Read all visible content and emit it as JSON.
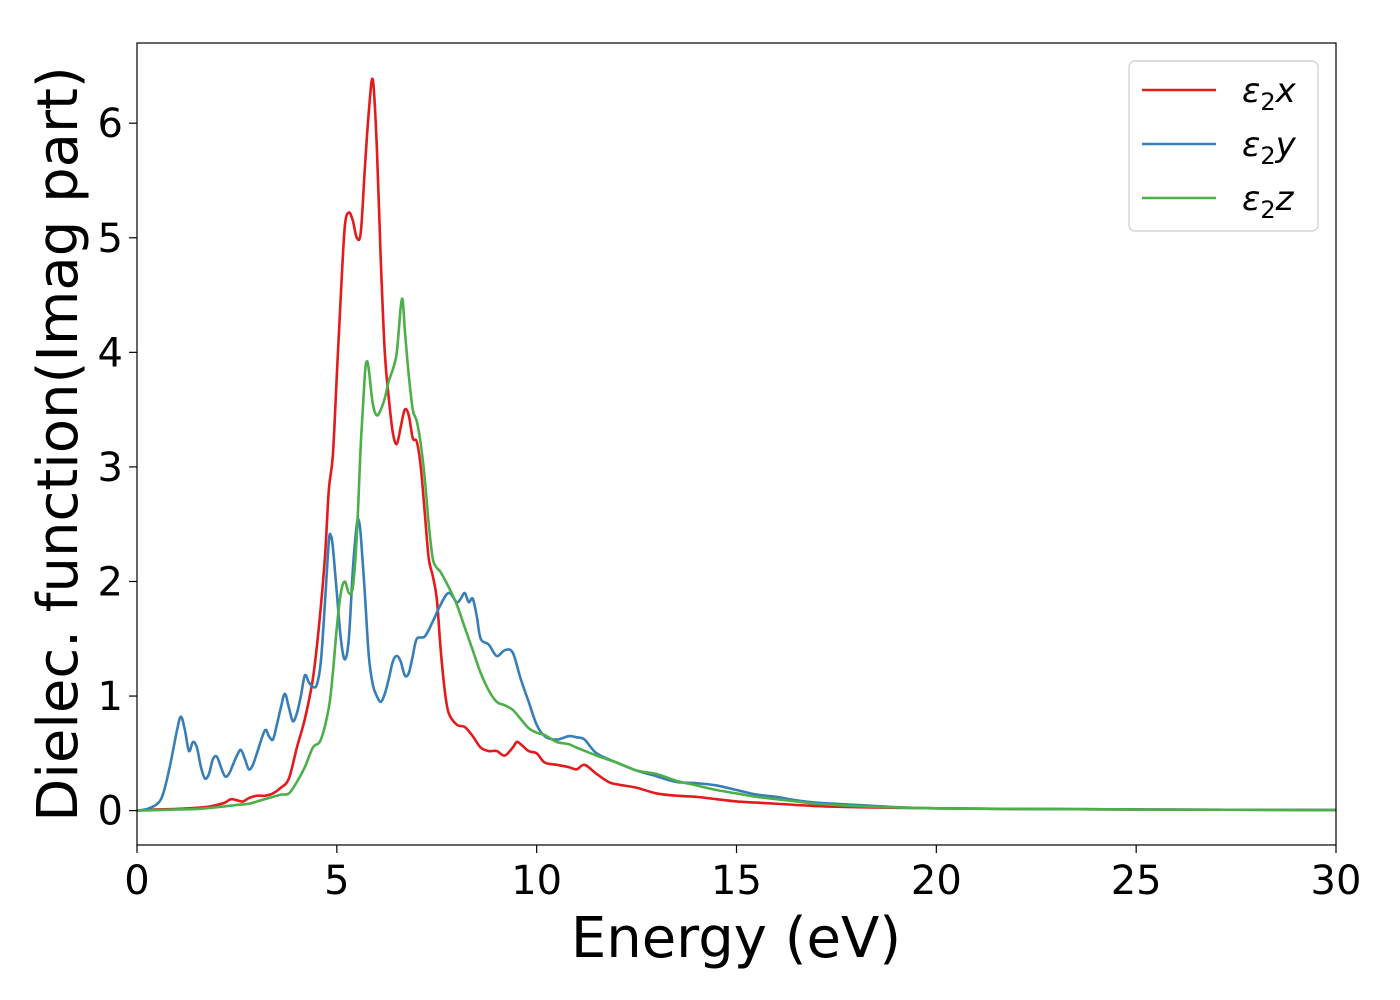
{
  "chart_data": {
    "type": "line",
    "title": "",
    "xlabel": "Energy (eV)",
    "ylabel": "Dielec. function(Imag part)",
    "xlim": [
      0,
      30
    ],
    "ylim": [
      -0.3,
      6.7
    ],
    "xticks": [
      0,
      5,
      10,
      15,
      20,
      25,
      30
    ],
    "yticks": [
      0,
      1,
      2,
      3,
      4,
      5,
      6
    ],
    "grid": false,
    "legend_position": "top-right",
    "series": [
      {
        "name": "ε2x",
        "legend": {
          "base": "ε",
          "sub": "2",
          "suffix": "x"
        },
        "color": "#e41a1c",
        "points": [
          [
            0,
            0
          ],
          [
            0.5,
            0.01
          ],
          [
            1,
            0.015
          ],
          [
            1.5,
            0.025
          ],
          [
            1.8,
            0.035
          ],
          [
            2.0,
            0.05
          ],
          [
            2.2,
            0.07
          ],
          [
            2.35,
            0.1
          ],
          [
            2.5,
            0.09
          ],
          [
            2.65,
            0.08
          ],
          [
            2.8,
            0.11
          ],
          [
            3.0,
            0.13
          ],
          [
            3.2,
            0.13
          ],
          [
            3.4,
            0.15
          ],
          [
            3.6,
            0.2
          ],
          [
            3.8,
            0.28
          ],
          [
            4.0,
            0.55
          ],
          [
            4.2,
            0.8
          ],
          [
            4.4,
            1.15
          ],
          [
            4.55,
            1.6
          ],
          [
            4.7,
            2.2
          ],
          [
            4.8,
            2.8
          ],
          [
            4.9,
            3.1
          ],
          [
            5.0,
            3.8
          ],
          [
            5.1,
            4.5
          ],
          [
            5.2,
            5.1
          ],
          [
            5.3,
            5.22
          ],
          [
            5.4,
            5.15
          ],
          [
            5.5,
            5.0
          ],
          [
            5.6,
            5.05
          ],
          [
            5.7,
            5.6
          ],
          [
            5.8,
            6.1
          ],
          [
            5.9,
            6.38
          ],
          [
            6.0,
            5.8
          ],
          [
            6.1,
            4.8
          ],
          [
            6.2,
            4.0
          ],
          [
            6.3,
            3.6
          ],
          [
            6.4,
            3.3
          ],
          [
            6.5,
            3.2
          ],
          [
            6.6,
            3.35
          ],
          [
            6.7,
            3.5
          ],
          [
            6.8,
            3.45
          ],
          [
            6.9,
            3.25
          ],
          [
            7.0,
            3.22
          ],
          [
            7.1,
            3.0
          ],
          [
            7.2,
            2.6
          ],
          [
            7.3,
            2.2
          ],
          [
            7.4,
            2.05
          ],
          [
            7.5,
            1.85
          ],
          [
            7.6,
            1.4
          ],
          [
            7.7,
            1.05
          ],
          [
            7.8,
            0.85
          ],
          [
            8.0,
            0.75
          ],
          [
            8.2,
            0.73
          ],
          [
            8.4,
            0.65
          ],
          [
            8.6,
            0.55
          ],
          [
            8.8,
            0.52
          ],
          [
            9.0,
            0.52
          ],
          [
            9.2,
            0.48
          ],
          [
            9.4,
            0.55
          ],
          [
            9.5,
            0.6
          ],
          [
            9.6,
            0.58
          ],
          [
            9.8,
            0.52
          ],
          [
            10,
            0.5
          ],
          [
            10.2,
            0.42
          ],
          [
            10.5,
            0.4
          ],
          [
            10.8,
            0.38
          ],
          [
            11.0,
            0.36
          ],
          [
            11.2,
            0.4
          ],
          [
            11.5,
            0.32
          ],
          [
            11.8,
            0.25
          ],
          [
            12,
            0.23
          ],
          [
            12.5,
            0.2
          ],
          [
            13,
            0.15
          ],
          [
            13.5,
            0.13
          ],
          [
            14,
            0.12
          ],
          [
            14.5,
            0.1
          ],
          [
            15,
            0.08
          ],
          [
            15.5,
            0.07
          ],
          [
            16,
            0.06
          ],
          [
            17,
            0.04
          ],
          [
            18,
            0.03
          ],
          [
            20,
            0.02
          ],
          [
            22,
            0.015
          ],
          [
            25,
            0.01
          ],
          [
            30,
            0.005
          ]
        ]
      },
      {
        "name": "ε2y",
        "legend": {
          "base": "ε",
          "sub": "2",
          "suffix": "y"
        },
        "color": "#377eb8",
        "points": [
          [
            0,
            0
          ],
          [
            0.3,
            0.02
          ],
          [
            0.6,
            0.1
          ],
          [
            0.8,
            0.35
          ],
          [
            1.0,
            0.7
          ],
          [
            1.1,
            0.82
          ],
          [
            1.2,
            0.7
          ],
          [
            1.3,
            0.52
          ],
          [
            1.4,
            0.6
          ],
          [
            1.5,
            0.55
          ],
          [
            1.6,
            0.38
          ],
          [
            1.7,
            0.28
          ],
          [
            1.8,
            0.32
          ],
          [
            1.9,
            0.45
          ],
          [
            2.0,
            0.47
          ],
          [
            2.1,
            0.38
          ],
          [
            2.2,
            0.3
          ],
          [
            2.3,
            0.32
          ],
          [
            2.4,
            0.4
          ],
          [
            2.5,
            0.48
          ],
          [
            2.6,
            0.53
          ],
          [
            2.7,
            0.45
          ],
          [
            2.8,
            0.36
          ],
          [
            2.9,
            0.4
          ],
          [
            3.0,
            0.5
          ],
          [
            3.2,
            0.7
          ],
          [
            3.3,
            0.65
          ],
          [
            3.4,
            0.62
          ],
          [
            3.5,
            0.75
          ],
          [
            3.6,
            0.9
          ],
          [
            3.7,
            1.02
          ],
          [
            3.8,
            0.9
          ],
          [
            3.9,
            0.78
          ],
          [
            4.0,
            0.85
          ],
          [
            4.1,
            1.0
          ],
          [
            4.2,
            1.18
          ],
          [
            4.3,
            1.12
          ],
          [
            4.4,
            1.08
          ],
          [
            4.5,
            1.1
          ],
          [
            4.6,
            1.3
          ],
          [
            4.7,
            1.8
          ],
          [
            4.8,
            2.35
          ],
          [
            4.85,
            2.4
          ],
          [
            4.9,
            2.3
          ],
          [
            5.0,
            1.9
          ],
          [
            5.1,
            1.5
          ],
          [
            5.2,
            1.32
          ],
          [
            5.3,
            1.5
          ],
          [
            5.4,
            2.1
          ],
          [
            5.5,
            2.5
          ],
          [
            5.55,
            2.53
          ],
          [
            5.6,
            2.4
          ],
          [
            5.7,
            1.9
          ],
          [
            5.8,
            1.35
          ],
          [
            5.9,
            1.1
          ],
          [
            6.0,
            1.0
          ],
          [
            6.1,
            0.95
          ],
          [
            6.2,
            1.02
          ],
          [
            6.3,
            1.15
          ],
          [
            6.4,
            1.3
          ],
          [
            6.5,
            1.35
          ],
          [
            6.6,
            1.3
          ],
          [
            6.7,
            1.18
          ],
          [
            6.8,
            1.2
          ],
          [
            6.9,
            1.35
          ],
          [
            7.0,
            1.5
          ],
          [
            7.2,
            1.52
          ],
          [
            7.4,
            1.65
          ],
          [
            7.6,
            1.8
          ],
          [
            7.8,
            1.9
          ],
          [
            8.0,
            1.82
          ],
          [
            8.1,
            1.85
          ],
          [
            8.2,
            1.9
          ],
          [
            8.3,
            1.82
          ],
          [
            8.4,
            1.85
          ],
          [
            8.5,
            1.7
          ],
          [
            8.6,
            1.5
          ],
          [
            8.8,
            1.45
          ],
          [
            9.0,
            1.35
          ],
          [
            9.2,
            1.4
          ],
          [
            9.4,
            1.38
          ],
          [
            9.6,
            1.15
          ],
          [
            9.8,
            0.95
          ],
          [
            10,
            0.75
          ],
          [
            10.2,
            0.65
          ],
          [
            10.5,
            0.62
          ],
          [
            10.8,
            0.65
          ],
          [
            11.0,
            0.64
          ],
          [
            11.2,
            0.62
          ],
          [
            11.5,
            0.5
          ],
          [
            12,
            0.42
          ],
          [
            12.5,
            0.35
          ],
          [
            13,
            0.3
          ],
          [
            13.5,
            0.25
          ],
          [
            14,
            0.24
          ],
          [
            14.5,
            0.22
          ],
          [
            15,
            0.18
          ],
          [
            15.5,
            0.14
          ],
          [
            16,
            0.12
          ],
          [
            16.5,
            0.09
          ],
          [
            17,
            0.07
          ],
          [
            18,
            0.05
          ],
          [
            19,
            0.03
          ],
          [
            20,
            0.02
          ],
          [
            22,
            0.015
          ],
          [
            25,
            0.01
          ],
          [
            30,
            0.005
          ]
        ]
      },
      {
        "name": "ε2z",
        "legend": {
          "base": "ε",
          "sub": "2",
          "suffix": "z"
        },
        "color": "#4daf4a",
        "points": [
          [
            0,
            0
          ],
          [
            0.5,
            0.005
          ],
          [
            1,
            0.01
          ],
          [
            1.5,
            0.015
          ],
          [
            2.0,
            0.03
          ],
          [
            2.5,
            0.05
          ],
          [
            2.8,
            0.06
          ],
          [
            3.0,
            0.08
          ],
          [
            3.2,
            0.1
          ],
          [
            3.4,
            0.12
          ],
          [
            3.6,
            0.14
          ],
          [
            3.8,
            0.15
          ],
          [
            4.0,
            0.25
          ],
          [
            4.2,
            0.38
          ],
          [
            4.4,
            0.55
          ],
          [
            4.6,
            0.62
          ],
          [
            4.8,
            0.9
          ],
          [
            4.9,
            1.2
          ],
          [
            5.0,
            1.6
          ],
          [
            5.1,
            1.9
          ],
          [
            5.2,
            2.0
          ],
          [
            5.3,
            1.9
          ],
          [
            5.4,
            1.95
          ],
          [
            5.5,
            2.4
          ],
          [
            5.6,
            3.2
          ],
          [
            5.7,
            3.8
          ],
          [
            5.75,
            3.92
          ],
          [
            5.8,
            3.85
          ],
          [
            5.9,
            3.55
          ],
          [
            6.0,
            3.45
          ],
          [
            6.1,
            3.5
          ],
          [
            6.2,
            3.6
          ],
          [
            6.3,
            3.75
          ],
          [
            6.4,
            3.85
          ],
          [
            6.5,
            4.0
          ],
          [
            6.6,
            4.4
          ],
          [
            6.65,
            4.45
          ],
          [
            6.7,
            4.2
          ],
          [
            6.8,
            3.8
          ],
          [
            6.9,
            3.5
          ],
          [
            7.0,
            3.4
          ],
          [
            7.1,
            3.2
          ],
          [
            7.2,
            2.9
          ],
          [
            7.3,
            2.5
          ],
          [
            7.4,
            2.2
          ],
          [
            7.5,
            2.12
          ],
          [
            7.6,
            2.08
          ],
          [
            7.8,
            1.95
          ],
          [
            8.0,
            1.8
          ],
          [
            8.2,
            1.6
          ],
          [
            8.4,
            1.4
          ],
          [
            8.6,
            1.2
          ],
          [
            8.8,
            1.05
          ],
          [
            9.0,
            0.95
          ],
          [
            9.2,
            0.92
          ],
          [
            9.4,
            0.88
          ],
          [
            9.6,
            0.8
          ],
          [
            9.8,
            0.72
          ],
          [
            10,
            0.68
          ],
          [
            10.2,
            0.66
          ],
          [
            10.5,
            0.6
          ],
          [
            10.8,
            0.58
          ],
          [
            11.0,
            0.55
          ],
          [
            11.5,
            0.48
          ],
          [
            12,
            0.42
          ],
          [
            12.5,
            0.35
          ],
          [
            13,
            0.32
          ],
          [
            13.5,
            0.26
          ],
          [
            14,
            0.22
          ],
          [
            14.5,
            0.18
          ],
          [
            15,
            0.15
          ],
          [
            15.5,
            0.12
          ],
          [
            16,
            0.1
          ],
          [
            16.5,
            0.08
          ],
          [
            17,
            0.06
          ],
          [
            18,
            0.04
          ],
          [
            20,
            0.02
          ],
          [
            22,
            0.015
          ],
          [
            25,
            0.01
          ],
          [
            30,
            0.005
          ]
        ]
      }
    ]
  }
}
